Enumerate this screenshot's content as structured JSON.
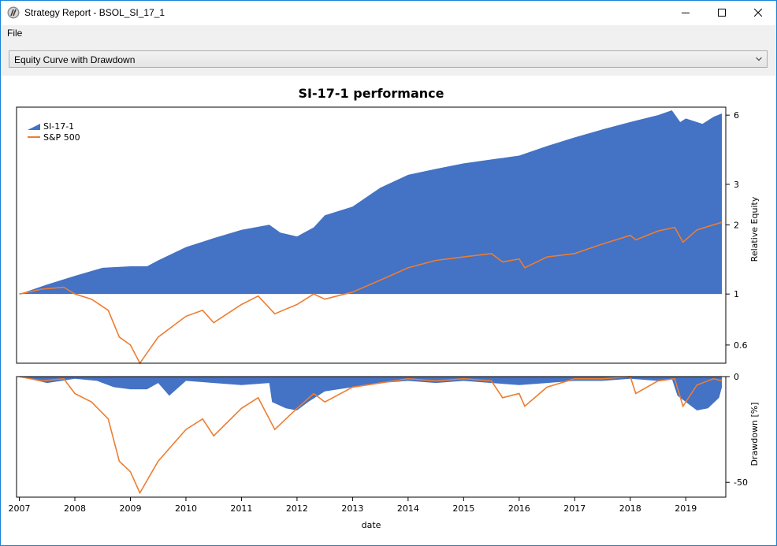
{
  "window": {
    "title": "Strategy Report - BSOL_SI_17_1",
    "controls": [
      "minimize-icon",
      "maximize-icon",
      "close-icon"
    ]
  },
  "menu": {
    "items": [
      "File"
    ]
  },
  "report_selector": {
    "selected": "Equity Curve with Drawdown"
  },
  "colors": {
    "strategy": "#4472c4",
    "benchmark": "#ed7d31",
    "window_border": "#1883d7"
  },
  "chart_data": [
    {
      "type": "area",
      "title": "SI-17-1 performance",
      "ylabel": "Relative Equity",
      "xlabel": "",
      "y_scale": "log",
      "y_ticks": [
        "0.6",
        "1",
        "2",
        "3",
        "6"
      ],
      "ylim": [
        0.5,
        6.5
      ],
      "legend": "top-left",
      "series": [
        {
          "name": "SI-17-1",
          "render": "area",
          "x": [
            2007.0,
            2007.5,
            2008.0,
            2008.5,
            2009.0,
            2009.3,
            2009.5,
            2010.0,
            2010.5,
            2011.0,
            2011.5,
            2011.7,
            2012.0,
            2012.3,
            2012.5,
            2013.0,
            2013.5,
            2014.0,
            2014.5,
            2015.0,
            2015.5,
            2016.0,
            2016.5,
            2017.0,
            2017.5,
            2018.0,
            2018.5,
            2018.75,
            2018.9,
            2019.0,
            2019.3,
            2019.5,
            2019.65
          ],
          "values": [
            1.0,
            1.1,
            1.2,
            1.3,
            1.32,
            1.32,
            1.4,
            1.6,
            1.75,
            1.9,
            2.0,
            1.85,
            1.78,
            1.95,
            2.2,
            2.4,
            2.9,
            3.3,
            3.5,
            3.7,
            3.85,
            4.0,
            4.4,
            4.8,
            5.2,
            5.6,
            6.0,
            6.3,
            5.6,
            5.8,
            5.5,
            5.9,
            6.1
          ]
        },
        {
          "name": "S&P 500",
          "render": "line",
          "x": [
            2007.0,
            2007.4,
            2007.8,
            2008.0,
            2008.3,
            2008.6,
            2008.8,
            2009.0,
            2009.17,
            2009.5,
            2010.0,
            2010.3,
            2010.5,
            2011.0,
            2011.3,
            2011.6,
            2011.8,
            2012.0,
            2012.3,
            2012.5,
            2013.0,
            2013.5,
            2014.0,
            2014.5,
            2015.0,
            2015.5,
            2015.7,
            2016.0,
            2016.1,
            2016.5,
            2017.0,
            2017.5,
            2018.0,
            2018.1,
            2018.5,
            2018.8,
            2018.95,
            2019.2,
            2019.5,
            2019.65
          ],
          "values": [
            1.0,
            1.05,
            1.07,
            1.0,
            0.95,
            0.85,
            0.65,
            0.6,
            0.5,
            0.65,
            0.8,
            0.85,
            0.75,
            0.9,
            0.98,
            0.82,
            0.86,
            0.9,
            1.0,
            0.95,
            1.02,
            1.15,
            1.3,
            1.4,
            1.45,
            1.5,
            1.38,
            1.42,
            1.3,
            1.45,
            1.5,
            1.65,
            1.8,
            1.72,
            1.88,
            1.95,
            1.68,
            1.9,
            2.0,
            2.05
          ]
        }
      ]
    },
    {
      "type": "area",
      "title": "",
      "xlabel": "date",
      "ylabel": "Drawdown [%]",
      "y_ticks": [
        "0",
        "-50"
      ],
      "ylim": [
        -57,
        0
      ],
      "x_ticks": [
        "2007",
        "2008",
        "2009",
        "2010",
        "2011",
        "2012",
        "2013",
        "2014",
        "2015",
        "2016",
        "2017",
        "2018",
        "2019"
      ],
      "series": [
        {
          "name": "SI-17-1",
          "render": "area",
          "x": [
            2007.0,
            2007.5,
            2008.0,
            2008.4,
            2008.7,
            2009.0,
            2009.3,
            2009.5,
            2009.7,
            2010.0,
            2010.5,
            2011.0,
            2011.5,
            2011.55,
            2011.8,
            2012.0,
            2012.2,
            2012.5,
            2013.0,
            2013.5,
            2014.0,
            2014.5,
            2015.0,
            2015.5,
            2016.0,
            2016.5,
            2017.0,
            2017.5,
            2018.0,
            2018.5,
            2018.75,
            2018.85,
            2019.0,
            2019.2,
            2019.4,
            2019.6,
            2019.65
          ],
          "values": [
            0,
            -3,
            -1,
            -2,
            -5,
            -6,
            -6,
            -3,
            -9,
            -2,
            -3,
            -4,
            -3,
            -12,
            -15,
            -16,
            -12,
            -7,
            -5,
            -3,
            -2,
            -3,
            -2,
            -3,
            -4,
            -3,
            -2,
            -2,
            -1,
            -2,
            -1,
            -9,
            -12,
            -16,
            -15,
            -10,
            -5
          ]
        },
        {
          "name": "S&P 500",
          "render": "line",
          "x": [
            2007.0,
            2007.4,
            2007.8,
            2008.0,
            2008.3,
            2008.6,
            2008.8,
            2009.0,
            2009.17,
            2009.5,
            2010.0,
            2010.3,
            2010.5,
            2011.0,
            2011.3,
            2011.6,
            2011.8,
            2012.0,
            2012.3,
            2012.5,
            2013.0,
            2013.5,
            2014.0,
            2014.5,
            2015.0,
            2015.5,
            2015.7,
            2016.0,
            2016.1,
            2016.5,
            2017.0,
            2017.5,
            2018.0,
            2018.1,
            2018.5,
            2018.8,
            2018.95,
            2019.2,
            2019.5,
            2019.65
          ],
          "values": [
            0,
            -2,
            -1,
            -8,
            -12,
            -20,
            -40,
            -45,
            -55,
            -40,
            -25,
            -20,
            -28,
            -15,
            -10,
            -25,
            -20,
            -15,
            -8,
            -12,
            -5,
            -3,
            -1,
            -2,
            -1,
            -2,
            -10,
            -8,
            -14,
            -5,
            -1,
            -1,
            0,
            -8,
            -2,
            -1,
            -14,
            -4,
            -1,
            -2
          ]
        }
      ]
    }
  ]
}
